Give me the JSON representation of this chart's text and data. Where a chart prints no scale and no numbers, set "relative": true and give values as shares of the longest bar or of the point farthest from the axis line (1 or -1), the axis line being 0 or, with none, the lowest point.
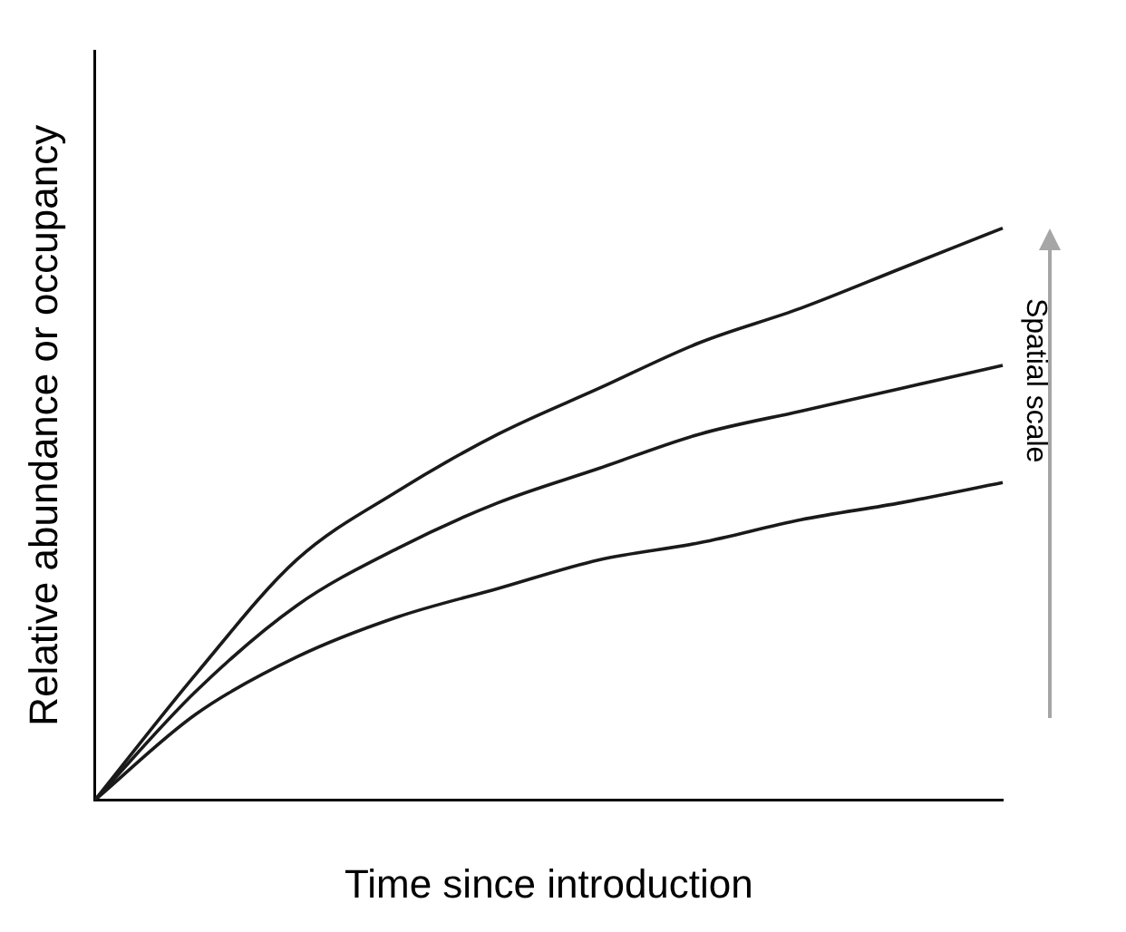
{
  "chart_data": {
    "type": "line",
    "relative": true,
    "xlabel": "Time since introduction",
    "ylabel": "Relative abundance or occupancy",
    "annotations": [
      "Spatial scale"
    ],
    "categories": [
      null,
      null,
      null,
      null,
      null,
      null,
      null,
      null,
      null,
      null
    ],
    "grid": false,
    "legend": false,
    "marker": "none",
    "line_style": "solid",
    "series": [
      {
        "color": "#1a1a1a",
        "values": [
          0,
          0.22,
          0.42,
          0.54,
          0.64,
          0.72,
          0.8,
          0.86,
          0.93,
          1
        ]
      },
      {
        "color": "#1a1a1a",
        "values": [
          0,
          0.19,
          0.34,
          0.44,
          0.52,
          0.58,
          0.64,
          0.68,
          0.72,
          0.76
        ]
      },
      {
        "color": "#1a1a1a",
        "values": [
          0,
          0.15,
          0.25,
          0.32,
          0.37,
          0.42,
          0.45,
          0.49,
          0.52,
          0.555
        ]
      }
    ]
  }
}
